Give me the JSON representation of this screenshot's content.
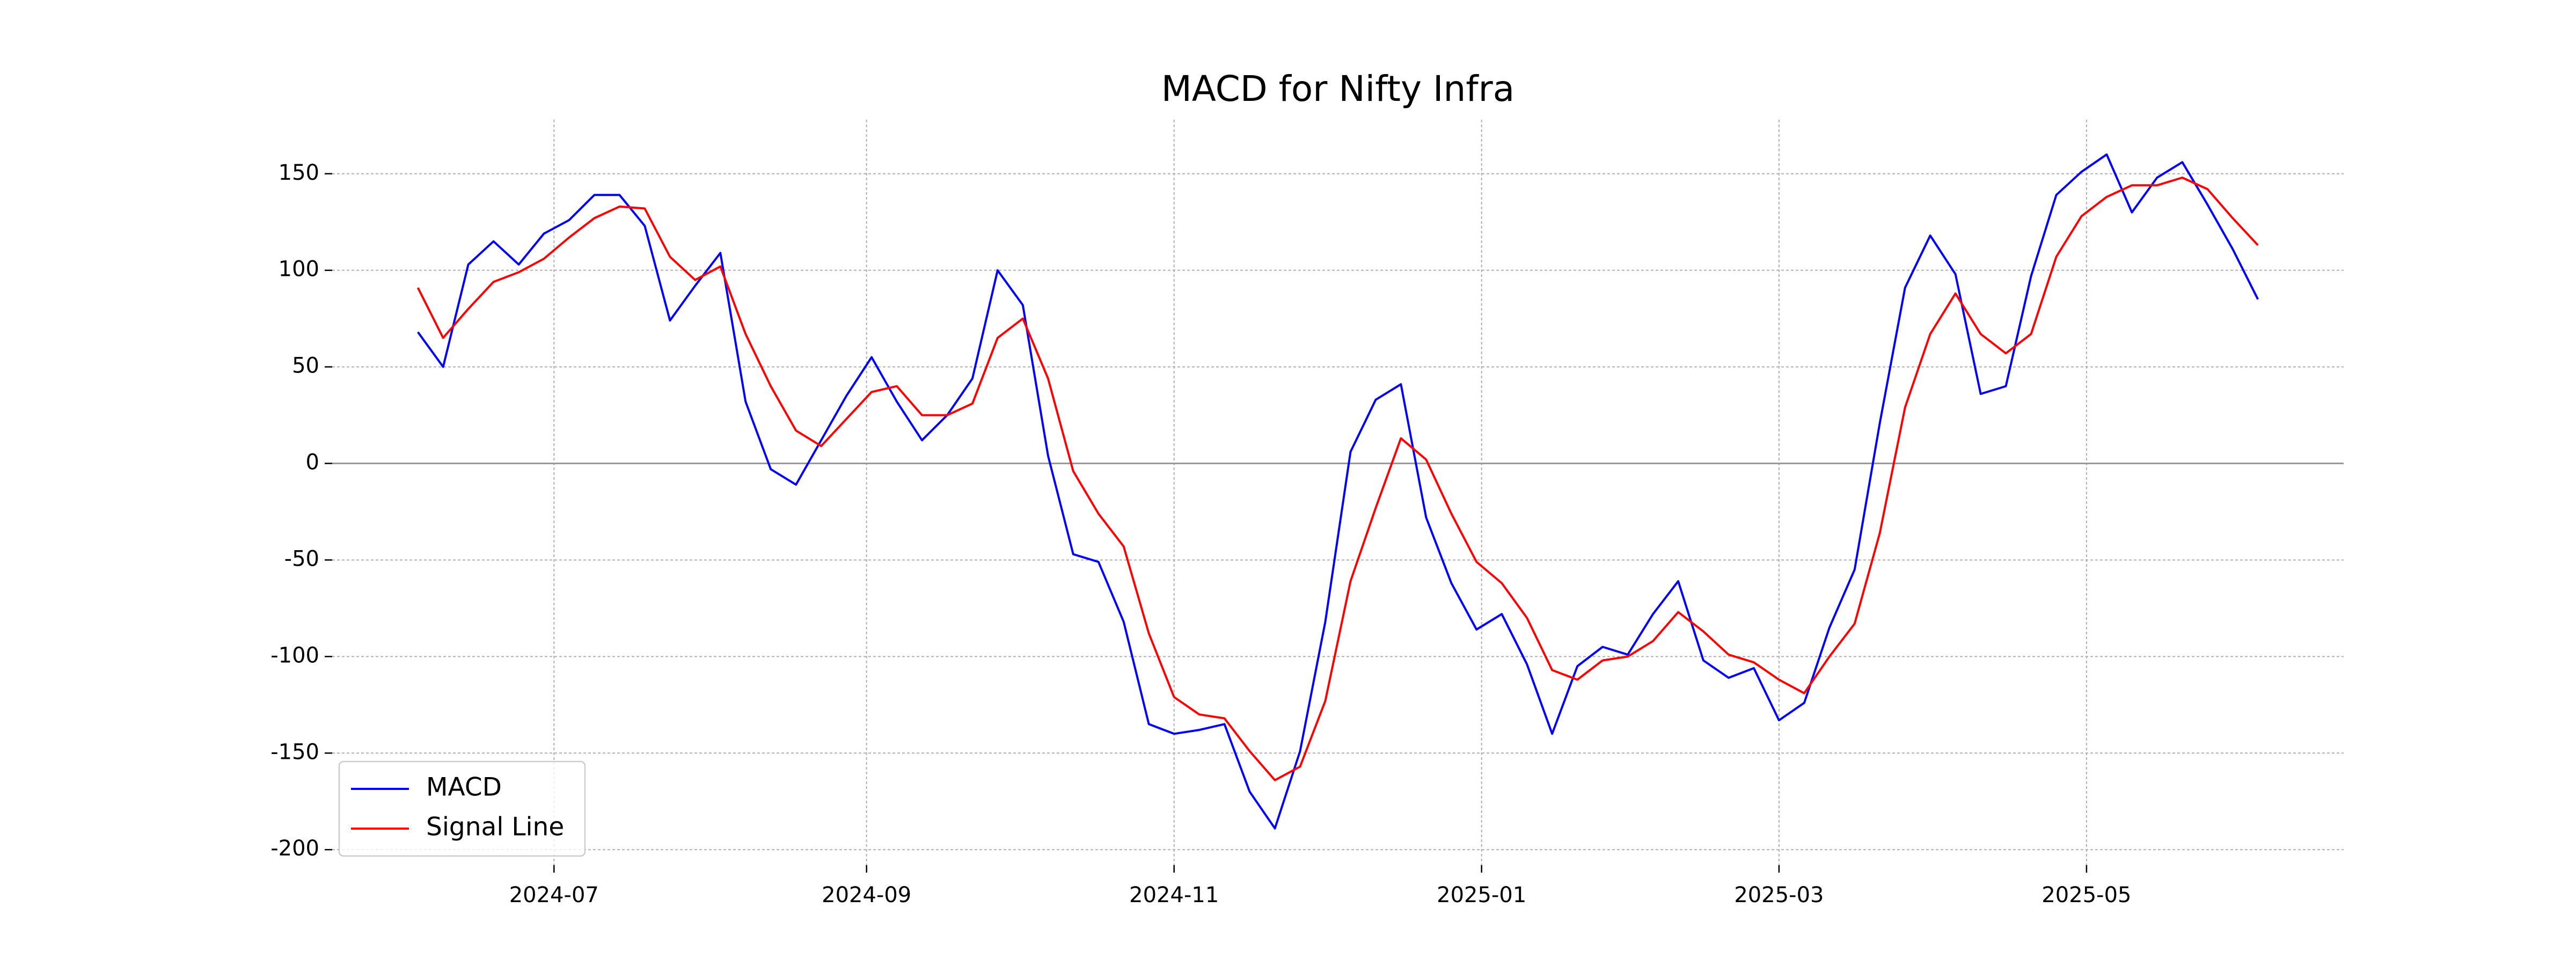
{
  "chart_data": {
    "type": "line",
    "title": "MACD for Nifty Infra",
    "x": [
      "2024-06-04",
      "2024-06-09",
      "2024-06-14",
      "2024-06-19",
      "2024-06-24",
      "2024-06-29",
      "2024-07-04",
      "2024-07-09",
      "2024-07-14",
      "2024-07-19",
      "2024-07-24",
      "2024-07-29",
      "2024-08-03",
      "2024-08-08",
      "2024-08-13",
      "2024-08-18",
      "2024-08-23",
      "2024-08-28",
      "2024-09-02",
      "2024-09-07",
      "2024-09-12",
      "2024-09-17",
      "2024-09-22",
      "2024-09-27",
      "2024-10-02",
      "2024-10-07",
      "2024-10-12",
      "2024-10-17",
      "2024-10-22",
      "2024-10-27",
      "2024-11-01",
      "2024-11-06",
      "2024-11-11",
      "2024-11-16",
      "2024-11-21",
      "2024-11-26",
      "2024-12-01",
      "2024-12-06",
      "2024-12-11",
      "2024-12-16",
      "2024-12-21",
      "2024-12-26",
      "2024-12-31",
      "2025-01-05",
      "2025-01-10",
      "2025-01-15",
      "2025-01-20",
      "2025-01-25",
      "2025-01-30",
      "2025-02-04",
      "2025-02-09",
      "2025-02-14",
      "2025-02-19",
      "2025-02-24",
      "2025-03-01",
      "2025-03-06",
      "2025-03-11",
      "2025-03-16",
      "2025-03-21",
      "2025-03-26",
      "2025-03-31",
      "2025-04-05",
      "2025-04-10",
      "2025-04-15",
      "2025-04-20",
      "2025-04-25",
      "2025-04-30",
      "2025-05-05",
      "2025-05-10",
      "2025-05-15",
      "2025-05-20",
      "2025-05-25",
      "2025-05-30",
      "2025-06-04"
    ],
    "series": [
      {
        "name": "MACD",
        "color": "#0000ff",
        "values": [
          68,
          50,
          103,
          115,
          103,
          119,
          126,
          139,
          139,
          123,
          74,
          92,
          109,
          32,
          -3,
          -11,
          12,
          35,
          55,
          32,
          12,
          25,
          44,
          100,
          82,
          4,
          -47,
          -51,
          -82,
          -135,
          -140,
          -138,
          -135,
          -170,
          -189,
          -149,
          -82,
          6,
          33,
          41,
          -28,
          -62,
          -86,
          -78,
          -104,
          -140,
          -105,
          -95,
          -99,
          -78,
          -61,
          -102,
          -111,
          -106,
          -133,
          -124,
          -85,
          -55,
          21,
          91,
          118,
          98,
          36,
          40,
          97,
          139,
          151,
          160,
          130,
          148,
          156,
          134,
          111,
          85
        ]
      },
      {
        "name": "Signal Line",
        "color": "#ff0000",
        "values": [
          91,
          65,
          80,
          94,
          99,
          106,
          117,
          127,
          133,
          132,
          107,
          95,
          102,
          67,
          40,
          17,
          9,
          23,
          37,
          40,
          25,
          25,
          31,
          65,
          75,
          44,
          -4,
          -26,
          -43,
          -88,
          -121,
          -130,
          -132,
          -149,
          -164,
          -157,
          -123,
          -61,
          -23,
          13,
          2,
          -26,
          -51,
          -62,
          -80,
          -107,
          -112,
          -102,
          -100,
          -92,
          -77,
          -87,
          -99,
          -103,
          -112,
          -119,
          -100,
          -83,
          -36,
          29,
          67,
          88,
          67,
          57,
          67,
          107,
          128,
          138,
          144,
          144,
          148,
          142,
          127,
          113
        ]
      }
    ],
    "xlim": [
      "2024-05-18",
      "2025-06-21"
    ],
    "xticks": [
      "2024-07",
      "2024-09",
      "2024-11",
      "2025-01",
      "2025-03",
      "2025-05"
    ],
    "ylim": [
      -208,
      178
    ],
    "yticks": [
      -200,
      -150,
      -100,
      -50,
      0,
      50,
      100,
      150
    ],
    "hline": 0,
    "grid": true,
    "legend": "lower left"
  }
}
